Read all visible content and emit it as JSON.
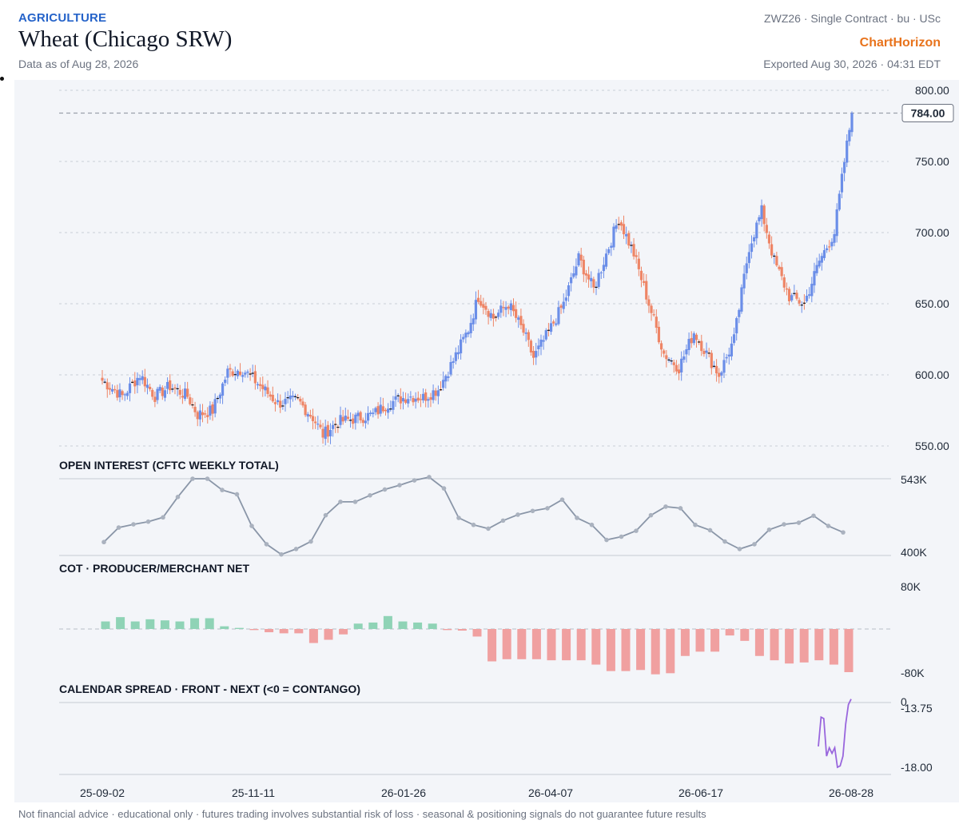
{
  "header": {
    "category": "AGRICULTURE",
    "title": "Wheat (Chicago SRW)",
    "as_of": "Data as of Aug 28, 2026",
    "contract": "ZWZ26 · Single Contract · bu · USc",
    "brand": "ChartHorizon",
    "exported": "Exported Aug 30, 2026 · 04:31 EDT"
  },
  "footer": "Not financial advice · educational only · futures trading involves substantial risk of loss · seasonal & positioning signals do not guarantee future results",
  "colors": {
    "up": "#6b8ee8",
    "down": "#ee8566",
    "oi_line": "#8a96a8",
    "cot_pos": "#8fd3b6",
    "cot_neg": "#f0a0a0",
    "spread": "#9966dd",
    "brand": "#e8731c",
    "category": "#2563c9"
  },
  "chart_data": [
    {
      "type": "candlestick",
      "panel": "price",
      "x_tick_labels": [
        "25-09-02",
        "25-11-11",
        "26-01-26",
        "26-04-07",
        "26-06-17",
        "26-08-28"
      ],
      "y_tick_labels": [
        "800.00",
        "750.00",
        "700.00",
        "650.00",
        "600.00",
        "550.00"
      ],
      "ylim": [
        550,
        800
      ],
      "last_price_label": "784.00",
      "last_price": 784,
      "close_path": [
        {
          "i": 0,
          "v": 596
        },
        {
          "i": 8,
          "v": 585
        },
        {
          "i": 15,
          "v": 600
        },
        {
          "i": 21,
          "v": 585
        },
        {
          "i": 27,
          "v": 592
        },
        {
          "i": 34,
          "v": 585
        },
        {
          "i": 38,
          "v": 572
        },
        {
          "i": 44,
          "v": 575
        },
        {
          "i": 50,
          "v": 602
        },
        {
          "i": 56,
          "v": 604
        },
        {
          "i": 62,
          "v": 594
        },
        {
          "i": 70,
          "v": 580
        },
        {
          "i": 78,
          "v": 582
        },
        {
          "i": 84,
          "v": 570
        },
        {
          "i": 88,
          "v": 558
        },
        {
          "i": 94,
          "v": 567
        },
        {
          "i": 100,
          "v": 569
        },
        {
          "i": 108,
          "v": 572
        },
        {
          "i": 114,
          "v": 580
        },
        {
          "i": 122,
          "v": 585
        },
        {
          "i": 128,
          "v": 584
        },
        {
          "i": 134,
          "v": 590
        },
        {
          "i": 140,
          "v": 610
        },
        {
          "i": 146,
          "v": 632
        },
        {
          "i": 150,
          "v": 655
        },
        {
          "i": 156,
          "v": 640
        },
        {
          "i": 162,
          "v": 650
        },
        {
          "i": 168,
          "v": 630
        },
        {
          "i": 172,
          "v": 612
        },
        {
          "i": 178,
          "v": 630
        },
        {
          "i": 184,
          "v": 650
        },
        {
          "i": 190,
          "v": 682
        },
        {
          "i": 196,
          "v": 660
        },
        {
          "i": 202,
          "v": 690
        },
        {
          "i": 206,
          "v": 710
        },
        {
          "i": 212,
          "v": 685
        },
        {
          "i": 218,
          "v": 650
        },
        {
          "i": 224,
          "v": 615
        },
        {
          "i": 230,
          "v": 605
        },
        {
          "i": 236,
          "v": 630
        },
        {
          "i": 242,
          "v": 612
        },
        {
          "i": 246,
          "v": 600
        },
        {
          "i": 252,
          "v": 625
        },
        {
          "i": 258,
          "v": 690
        },
        {
          "i": 263,
          "v": 715
        },
        {
          "i": 268,
          "v": 680
        },
        {
          "i": 274,
          "v": 655
        },
        {
          "i": 280,
          "v": 650
        },
        {
          "i": 286,
          "v": 680
        },
        {
          "i": 292,
          "v": 700
        },
        {
          "i": 296,
          "v": 750
        },
        {
          "i": 299,
          "v": 784
        }
      ],
      "ohlc_note": "daily bars Sep 2025 – Aug 2026"
    },
    {
      "type": "line",
      "panel": "open_interest",
      "title": "OPEN INTEREST (CFTC WEEKLY TOTAL)",
      "y_tick_labels": [
        "543K",
        "400K"
      ],
      "ylim": [
        400,
        543
      ],
      "units": "K contracts",
      "values": [
        425,
        452,
        458,
        463,
        471,
        509,
        543,
        543,
        522,
        514,
        455,
        421,
        402,
        412,
        426,
        475,
        500,
        500,
        512,
        523,
        531,
        540,
        546,
        525,
        470,
        457,
        450,
        465,
        476,
        483,
        488,
        504,
        470,
        457,
        429,
        435,
        446,
        475,
        491,
        488,
        457,
        447,
        426,
        412,
        421,
        448,
        458,
        461,
        474,
        455,
        443
      ]
    },
    {
      "type": "bar",
      "panel": "cot",
      "title": "COT · PRODUCER/MERCHANT NET",
      "y_tick_labels": [
        "80K",
        "-80K"
      ],
      "ylim": [
        -80,
        80
      ],
      "units": "K contracts",
      "values": [
        14,
        22,
        14,
        18,
        16,
        14,
        20,
        20,
        5,
        2,
        -2,
        -6,
        -8,
        -8,
        -26,
        -20,
        -10,
        10,
        12,
        24,
        14,
        12,
        10,
        -2,
        -3,
        -14,
        -60,
        -56,
        -56,
        -56,
        -58,
        -58,
        -58,
        -66,
        -78,
        -78,
        -76,
        -84,
        -82,
        -50,
        -42,
        -42,
        -12,
        -22,
        -50,
        -58,
        -64,
        -62,
        -58,
        -66,
        -80
      ]
    },
    {
      "type": "line",
      "panel": "calendar_spread",
      "title": "CALENDAR SPREAD · FRONT - NEXT (<0 = CONTANGO)",
      "y_tick_labels": [
        "0",
        "-13.75",
        "-18.00"
      ],
      "ylim": [
        -18,
        0
      ],
      "values": [
        -16.5,
        -14.4,
        -14.5,
        -17.2,
        -16.6,
        -17.0,
        -16.6,
        -18.0,
        -17.9,
        -17.2,
        -14.9,
        -13.5,
        -13.1
      ]
    }
  ]
}
